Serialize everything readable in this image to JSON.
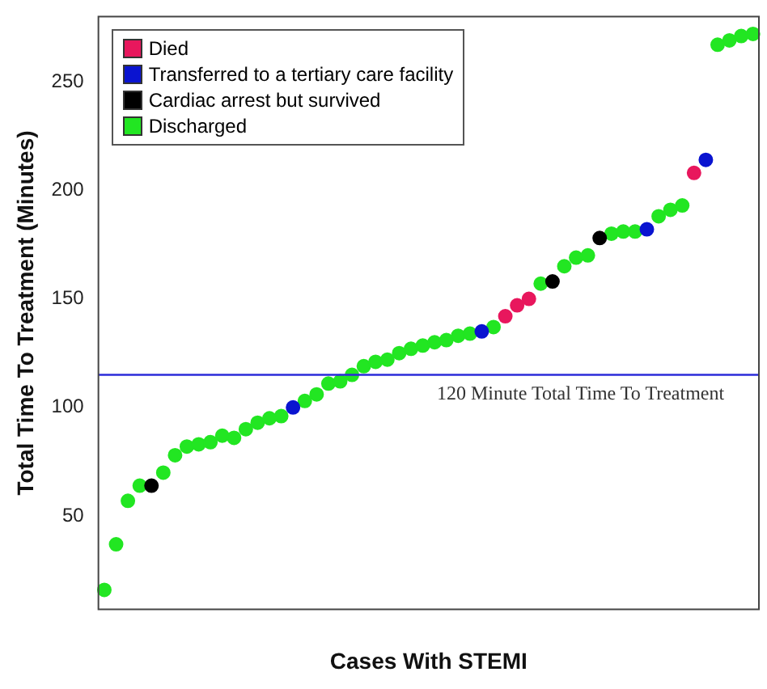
{
  "chart_data": {
    "type": "scatter",
    "xlabel": "Cases With STEMI",
    "ylabel": "Total Time To Treatment (Minutes)",
    "categories": [
      null,
      null,
      null,
      null,
      null,
      null,
      null,
      null,
      null,
      null,
      null,
      null,
      null,
      null,
      null,
      null,
      null,
      null,
      null,
      null,
      null,
      null,
      null,
      null,
      null,
      null,
      null,
      null,
      null,
      null,
      null,
      null,
      null,
      null,
      null,
      null,
      null,
      null,
      null,
      null,
      null,
      null,
      null,
      null,
      null,
      null,
      null,
      null,
      null,
      null,
      null,
      null,
      null,
      null,
      null,
      null
    ],
    "series": [
      {
        "name": "Died",
        "color": "#e8175d",
        "values": [
          null,
          null,
          null,
          null,
          null,
          null,
          null,
          null,
          null,
          null,
          null,
          null,
          null,
          null,
          null,
          null,
          null,
          null,
          null,
          null,
          null,
          null,
          null,
          null,
          null,
          null,
          null,
          null,
          null,
          null,
          null,
          null,
          null,
          null,
          142,
          147,
          150,
          null,
          null,
          null,
          null,
          null,
          null,
          null,
          null,
          null,
          null,
          null,
          null,
          null,
          208,
          null,
          null,
          null,
          null,
          null
        ]
      },
      {
        "name": "Transferred to a tertiary care facility",
        "color": "#0a14d0",
        "values": [
          null,
          null,
          null,
          null,
          null,
          null,
          null,
          null,
          null,
          null,
          null,
          null,
          null,
          null,
          null,
          null,
          100,
          null,
          null,
          null,
          null,
          null,
          null,
          null,
          null,
          null,
          null,
          null,
          null,
          null,
          null,
          null,
          135,
          null,
          null,
          null,
          null,
          null,
          null,
          null,
          null,
          null,
          null,
          null,
          null,
          null,
          182,
          null,
          null,
          null,
          null,
          214,
          null,
          null,
          null,
          null
        ]
      },
      {
        "name": "Cardiac arrest but survived",
        "color": "#000000",
        "values": [
          null,
          null,
          null,
          null,
          64,
          null,
          null,
          null,
          null,
          null,
          null,
          null,
          null,
          null,
          null,
          null,
          null,
          null,
          null,
          null,
          null,
          null,
          null,
          null,
          null,
          null,
          null,
          null,
          null,
          null,
          null,
          null,
          null,
          null,
          null,
          null,
          null,
          null,
          158,
          null,
          null,
          null,
          178,
          null,
          null,
          null,
          null,
          null,
          null,
          null,
          null,
          null,
          null,
          null,
          null,
          null
        ]
      },
      {
        "name": "Discharged",
        "color": "#22e622",
        "values": [
          16,
          37,
          57,
          64,
          null,
          70,
          78,
          82,
          83,
          84,
          87,
          86,
          90,
          93,
          95,
          96,
          null,
          103,
          106,
          111,
          112,
          115,
          119,
          121,
          122,
          125,
          127,
          128.5,
          130,
          131,
          133,
          134,
          null,
          137,
          null,
          null,
          null,
          157,
          null,
          165,
          169,
          170,
          null,
          180,
          181,
          181,
          null,
          188,
          191,
          193,
          null,
          null,
          267,
          269,
          271,
          272
        ]
      }
    ],
    "ylim": [
      7,
      280
    ],
    "yticks": [
      50,
      100,
      150,
      200,
      250
    ],
    "grid": false,
    "legend": "top left",
    "marker": "circle",
    "ref_lines": [
      {
        "axis": "y",
        "value": 115,
        "label": "120 Minute Total Time To Treatment",
        "color": "#2b2bd9"
      }
    ]
  }
}
